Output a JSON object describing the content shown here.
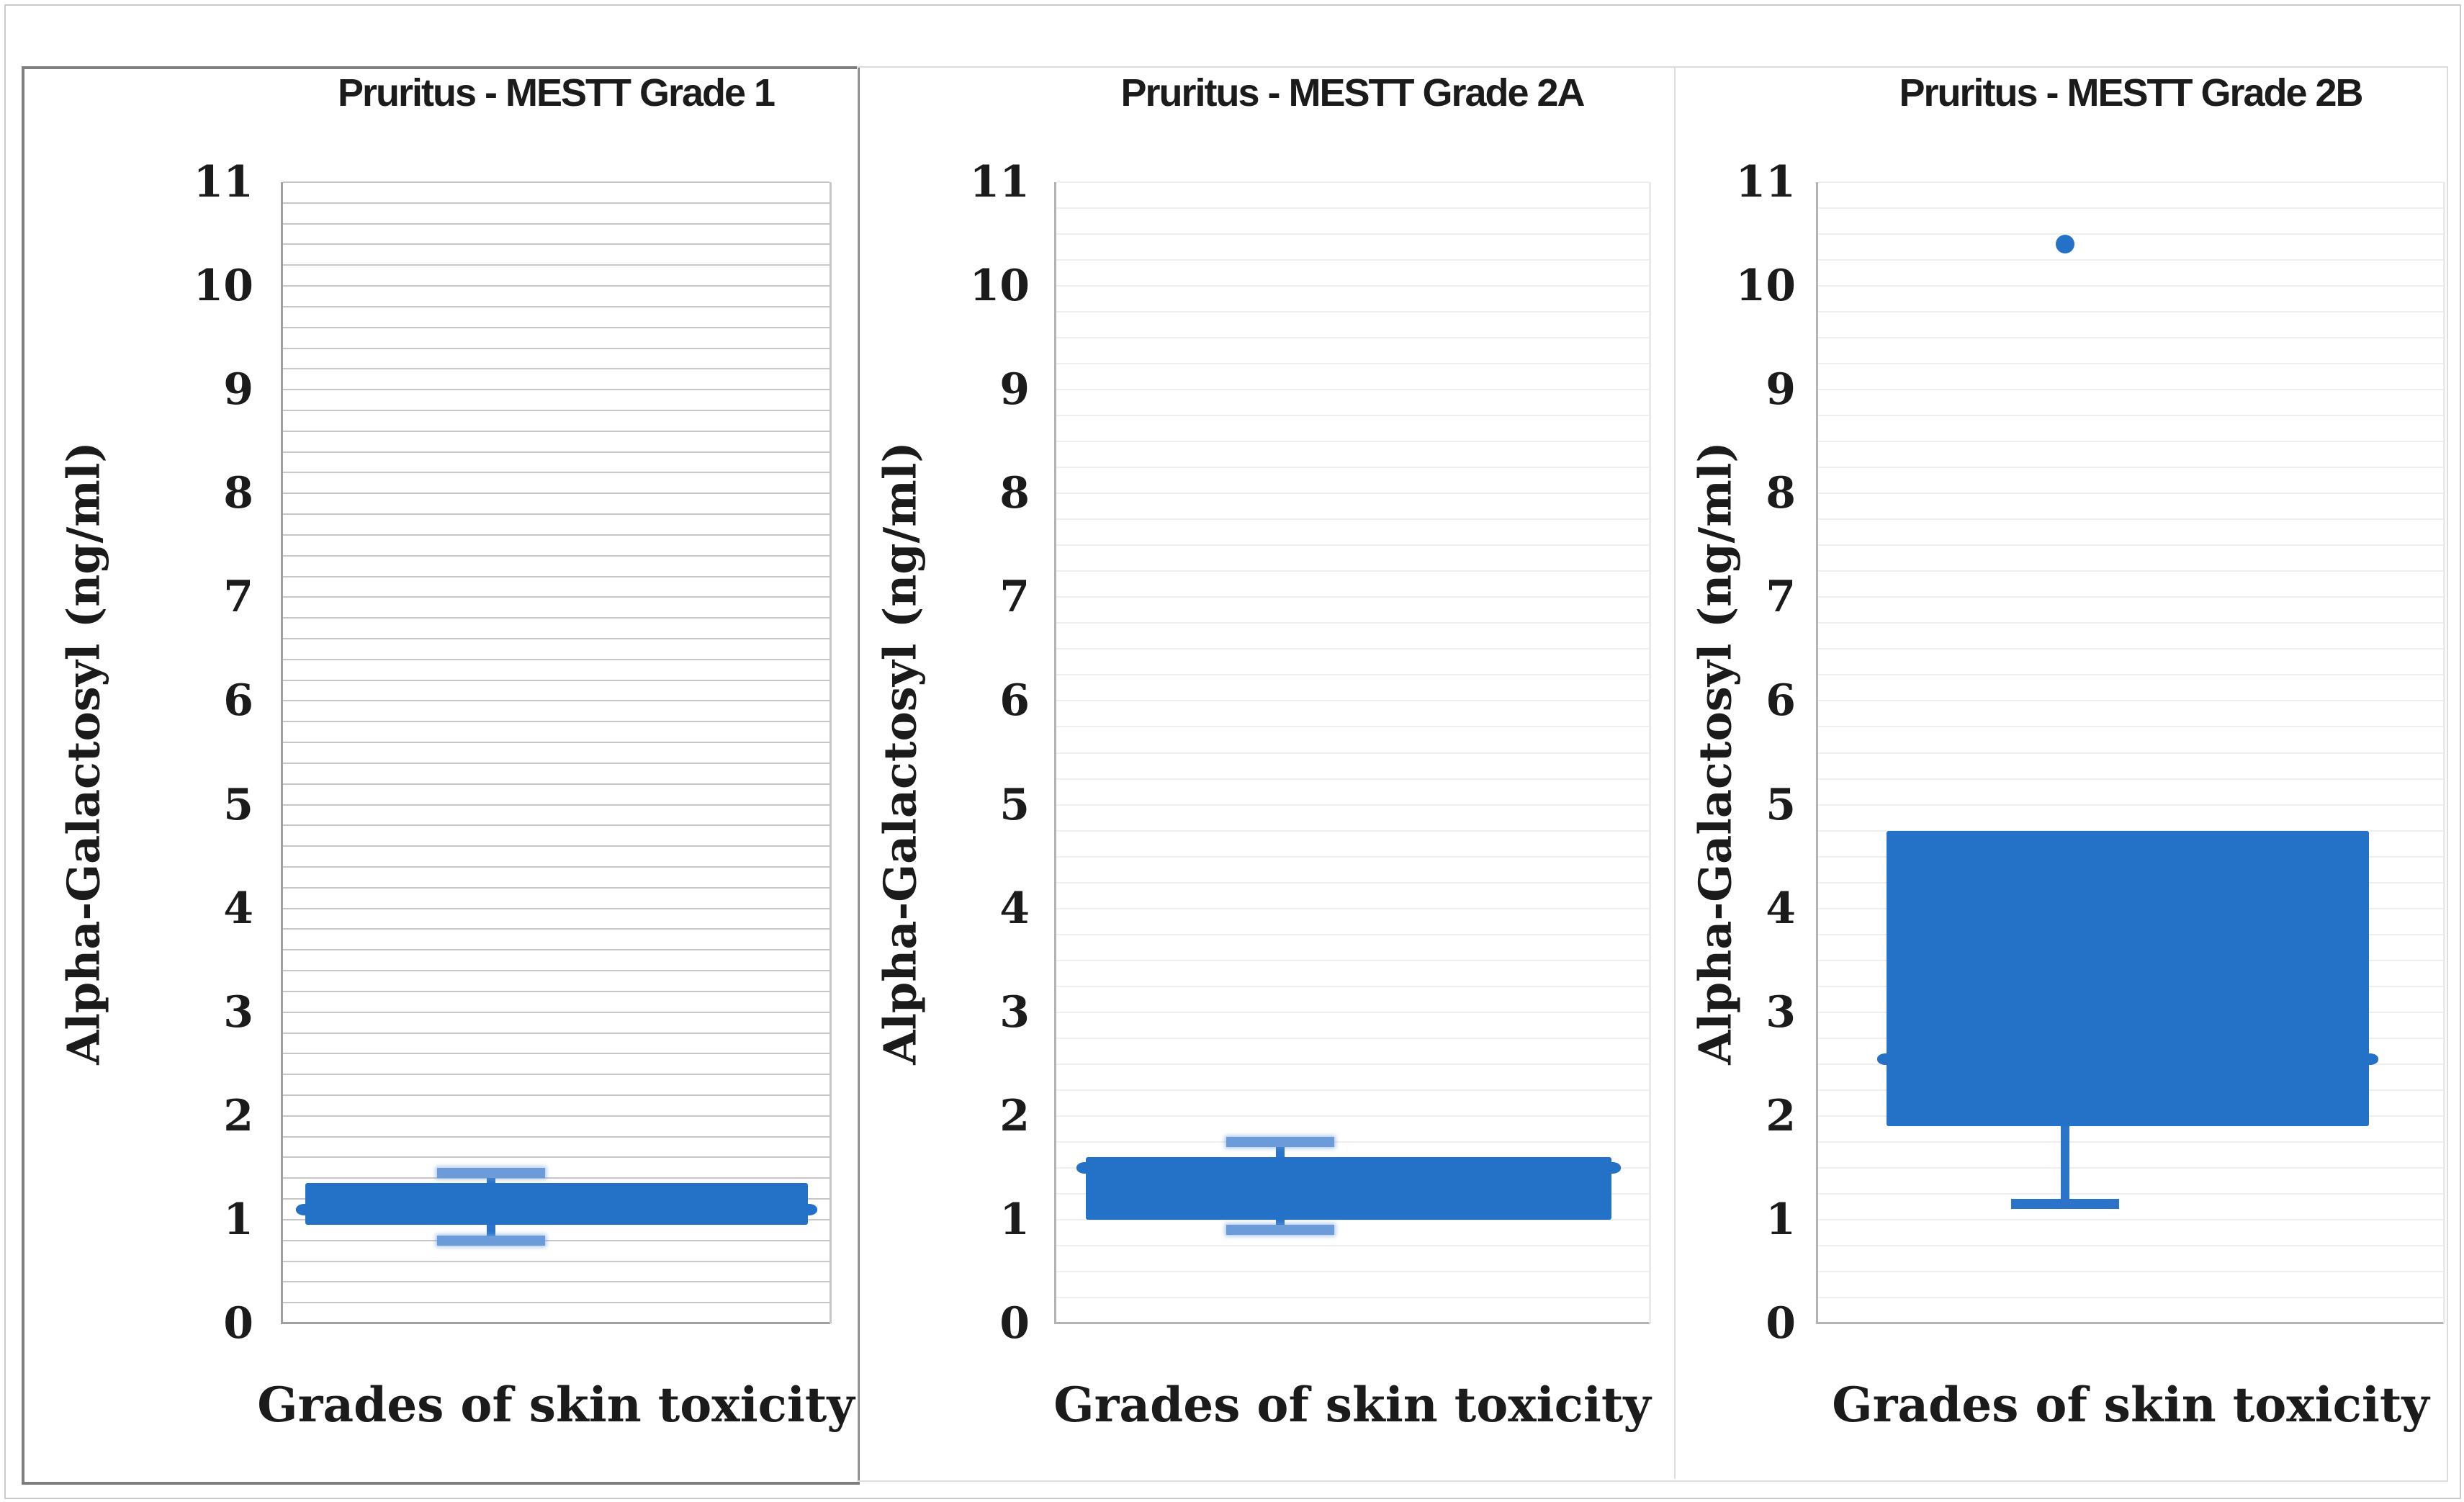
{
  "figure": {
    "y_axis_title": "Alpha-Galactosyl (ng/ml)",
    "x_axis_caption": "Grades of skin toxicity",
    "y_ticks": [
      "0",
      "1",
      "2",
      "3",
      "4",
      "5",
      "6",
      "7",
      "8",
      "9",
      "10",
      "11"
    ],
    "colors": {
      "box_fill": "#2471c8",
      "whisker": "#2b74c9",
      "whisker_cap_soft": "#6b9bd9",
      "grid_dark": "#c7c7c7",
      "grid_light": "#f1efec",
      "axis_dark": "#a0a0a0",
      "axis_light": "#b3b3b3",
      "plot_right_dark": "#c7c7c7",
      "plot_right_light": "#eceae8",
      "panel1_border": "#7e7e7e",
      "panel_border_light": "#dddddd",
      "outer_border": "#cbcbcb",
      "text": "#1b1b1b"
    }
  },
  "chart_data": [
    {
      "type": "box",
      "title": "Pruritus - MESTT Grade 1",
      "xlabel": "Grades of skin toxicity",
      "ylabel": "Alpha-Galactosyl (ng/ml)",
      "ylim": [
        0,
        11
      ],
      "ytick_step": 1,
      "grid": true,
      "grid_step": 0.2,
      "legend": false,
      "box": {
        "whisker_low": 0.8,
        "q1": 0.95,
        "median": 1.1,
        "q3": 1.35,
        "whisker_high": 1.45
      },
      "outliers": []
    },
    {
      "type": "box",
      "title": "Pruritus - MESTT Grade 2A",
      "xlabel": "Grades of skin toxicity",
      "ylabel": "Alpha-Galactosyl (ng/ml)",
      "ylim": [
        0,
        11
      ],
      "ytick_step": 1,
      "grid": true,
      "grid_step": 0.25,
      "legend": false,
      "box": {
        "whisker_low": 0.9,
        "q1": 1.0,
        "median": 1.5,
        "q3": 1.6,
        "whisker_high": 1.75
      },
      "outliers": []
    },
    {
      "type": "box",
      "title": "Pruritus - MESTT Grade 2B",
      "xlabel": "Grades of skin toxicity",
      "ylabel": "Alpha-Galactosyl (ng/ml)",
      "ylim": [
        0,
        11
      ],
      "ytick_step": 1,
      "grid": true,
      "grid_step": 0.25,
      "legend": false,
      "box": {
        "whisker_low": 1.15,
        "q1": 1.9,
        "median": 2.55,
        "q3": 4.75,
        "whisker_high": 4.75
      },
      "outliers": [
        10.4
      ]
    }
  ]
}
